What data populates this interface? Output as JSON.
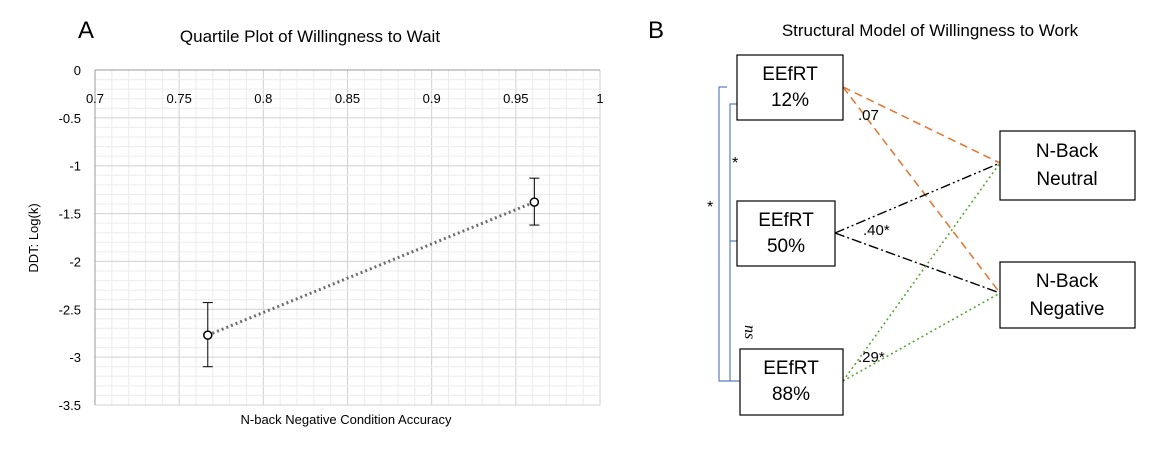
{
  "panel_a": {
    "letter": "A",
    "chart_data": {
      "type": "scatter",
      "title": "Quartile Plot of Willingness to Wait",
      "xlabel": "N-back Negative Condition Accuracy",
      "ylabel": "DDT: Log(k)",
      "xlim": [
        0.7,
        1
      ],
      "ylim": [
        -3.5,
        0
      ],
      "x_ticks": [
        "0.7",
        "0.75",
        "0.8",
        "0.85",
        "0.9",
        "0.95",
        "1"
      ],
      "y_ticks": [
        "0",
        "-0.5",
        "-1",
        "-1.5",
        "-2",
        "-2.5",
        "-3",
        "-3.5"
      ],
      "grid": true,
      "points": [
        {
          "x": 0.767,
          "y": -2.77,
          "err_low": -3.1,
          "err_high": -2.43
        },
        {
          "x": 0.961,
          "y": -1.38,
          "err_low": -1.62,
          "err_high": -1.13
        }
      ],
      "trendline": "dotted"
    }
  },
  "panel_b": {
    "letter": "B",
    "title": "Structural Model of Willingness to Work",
    "boxes": {
      "eefrt12": {
        "line1": "EEfRT",
        "line2": "12%"
      },
      "eefrt50": {
        "line1": "EEfRT",
        "line2": "50%"
      },
      "eefrt88": {
        "line1": "EEfRT",
        "line2": "88%"
      },
      "nback_neutral": {
        "line1": "N-Back",
        "line2": "Neutral"
      },
      "nback_negative": {
        "line1": "N-Back",
        "line2": "Negative"
      }
    },
    "coefficients": {
      "c12": ".07",
      "c50": ".40*",
      "c88": ".29*"
    },
    "significance": {
      "outer": "*",
      "inner_top": "*",
      "inner_bottom": "ns"
    },
    "colors": {
      "c12": "#e07b39",
      "c50": "#000000",
      "c88": "#5aa832",
      "bracket": "#5b7fc0"
    }
  }
}
